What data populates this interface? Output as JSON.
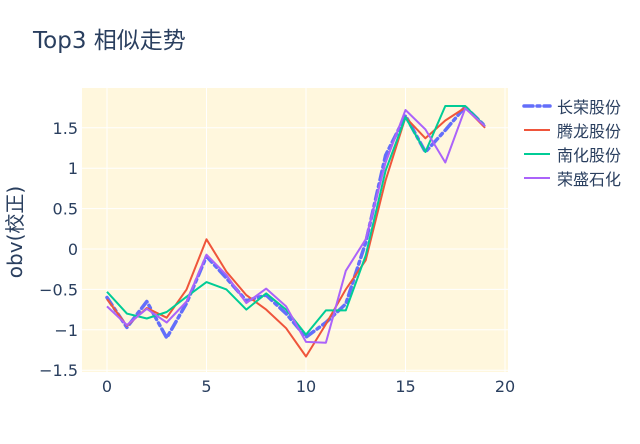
{
  "title": "Top3 相似走势",
  "chart_data": {
    "type": "line",
    "title": "Top3 相似走势",
    "xlabel": "",
    "ylabel": "obv(校正)",
    "xlim": [
      -1.2,
      20.2
    ],
    "ylim": [
      -1.5,
      1.97
    ],
    "x_ticks": [
      0,
      5,
      10,
      15,
      20
    ],
    "x_tick_labels": [
      "0",
      "5",
      "10",
      "15",
      "20"
    ],
    "y_ticks": [
      1.5,
      1,
      0.5,
      0,
      -0.5,
      -1,
      -1.5
    ],
    "y_tick_labels": [
      "1.5",
      "1",
      "0.5",
      "0",
      "−0.5",
      "−1",
      "−1.5"
    ],
    "grid": true,
    "plot_bgcolor": "#FFF7DD",
    "legend_position": "right",
    "x": [
      0,
      1,
      2,
      3,
      4,
      5,
      6,
      7,
      8,
      9,
      10,
      11,
      12,
      13,
      14,
      15,
      16,
      17,
      18,
      19
    ],
    "series": [
      {
        "name": "长荣股份",
        "color": "#636efa",
        "dash": "dashdot",
        "width": 3.5,
        "values": [
          -0.6,
          -0.97,
          -0.65,
          -1.1,
          -0.67,
          -0.09,
          -0.36,
          -0.64,
          -0.57,
          -0.8,
          -1.09,
          -0.91,
          -0.68,
          0.08,
          1.16,
          1.65,
          1.2,
          1.47,
          1.76,
          1.52
        ]
      },
      {
        "name": "腾龙股份",
        "color": "#EF553B",
        "dash": "solid",
        "width": 2,
        "values": [
          -0.62,
          -0.95,
          -0.73,
          -0.85,
          -0.5,
          0.12,
          -0.28,
          -0.57,
          -0.75,
          -0.98,
          -1.33,
          -0.93,
          -0.5,
          -0.14,
          0.85,
          1.63,
          1.37,
          1.59,
          1.75,
          1.5
        ]
      },
      {
        "name": "南化股份",
        "color": "#00cc96",
        "dash": "solid",
        "width": 2,
        "values": [
          -0.53,
          -0.8,
          -0.86,
          -0.78,
          -0.59,
          -0.41,
          -0.5,
          -0.75,
          -0.55,
          -0.75,
          -1.06,
          -0.76,
          -0.76,
          -0.08,
          0.97,
          1.63,
          1.2,
          1.77,
          1.77,
          1.52
        ]
      },
      {
        "name": "荣盛石化",
        "color": "#ab63fa",
        "dash": "solid",
        "width": 2,
        "values": [
          -0.71,
          -0.94,
          -0.74,
          -0.91,
          -0.65,
          -0.07,
          -0.32,
          -0.67,
          -0.49,
          -0.71,
          -1.15,
          -1.16,
          -0.27,
          0.12,
          1.07,
          1.72,
          1.48,
          1.07,
          1.74,
          1.52
        ]
      }
    ]
  }
}
